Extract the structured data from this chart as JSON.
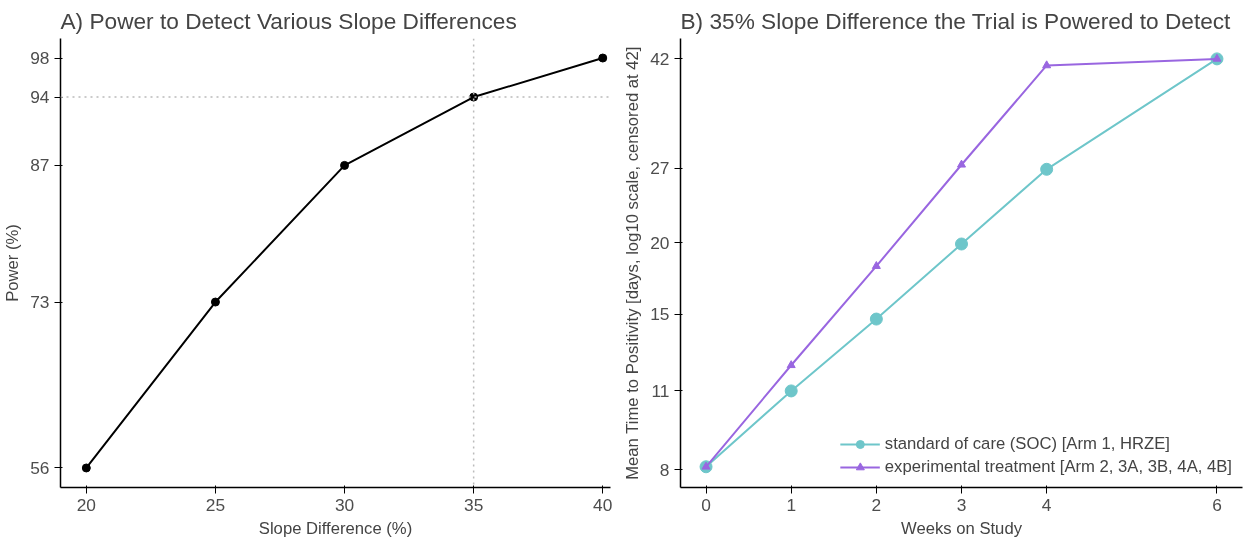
{
  "chart_data": [
    {
      "type": "line",
      "title": "A) Power to Detect Various Slope Differences",
      "xlabel": "Slope Difference (%)",
      "ylabel": "Power (%)",
      "x": [
        20,
        25,
        30,
        35,
        40
      ],
      "series": [
        {
          "color": "#000000",
          "values": [
            56,
            73,
            87,
            94,
            98
          ],
          "marker": "circle"
        }
      ],
      "xlim": [
        19,
        40.3
      ],
      "xticks": [
        20,
        25,
        30,
        35,
        40
      ],
      "ylim": [
        54,
        100
      ],
      "yticks": [
        56,
        73,
        87,
        94,
        98
      ],
      "ref_lines": [
        {
          "axis": "x",
          "value": 35,
          "color": "#bbbbbb",
          "line_style": "dotted"
        },
        {
          "axis": "y",
          "value": 94,
          "color": "#bbbbbb",
          "line_style": "dotted"
        }
      ],
      "grid": false,
      "legend": false,
      "line_style": "solid"
    },
    {
      "type": "line",
      "title": "B) 35% Slope Difference the Trial is Powered to Detect",
      "xlabel": "Weeks on Study",
      "ylabel": "Mean Time to Positivity [days, log10 scale, censored at 42]",
      "x": [
        0,
        1,
        2,
        3,
        4,
        6
      ],
      "series": [
        {
          "name": "standard of care (SOC) [Arm 1, HRZE]",
          "color": "#6ec6ca",
          "marker": "circle",
          "values": [
            8.1,
            11,
            14.7,
            19.9,
            26.9,
            42
          ]
        },
        {
          "name": "experimental treatment [Arm 2, 3A, 3B, 4A, 4B]",
          "color": "#9966e0",
          "marker": "triangle",
          "values": [
            8.1,
            12.2,
            18.2,
            27.4,
            40.9,
            42
          ]
        }
      ],
      "log": "y",
      "xlim": [
        -0.3,
        6.3
      ],
      "xticks": [
        0,
        1,
        2,
        3,
        4,
        6
      ],
      "ylim": [
        7.45,
        45.6
      ],
      "yticks": [
        8,
        11,
        15,
        20,
        27,
        42
      ],
      "grid": false,
      "legend": "bottom right",
      "line_style": "solid"
    }
  ]
}
